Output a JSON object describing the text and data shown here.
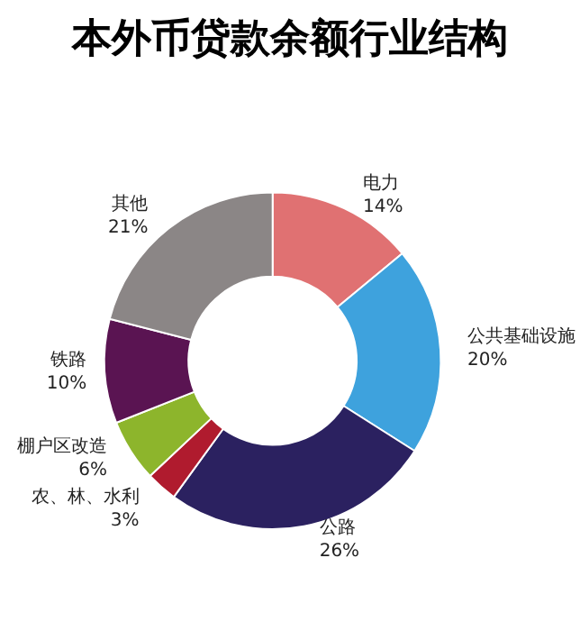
{
  "chart_data": {
    "type": "donut",
    "title": "本外币贷款余额行业结构",
    "categories": [
      "电力",
      "公共基础设施",
      "公路",
      "农、林、水利",
      "棚户区改造",
      "铁路",
      "其他"
    ],
    "values": [
      14,
      20,
      26,
      3,
      6,
      10,
      21
    ],
    "value_labels": [
      "14%",
      "20%",
      "26%",
      "3%",
      "6%",
      "10%",
      "21%"
    ],
    "colors": [
      "#e07172",
      "#3ea2dd",
      "#2b2160",
      "#b01b2e",
      "#8db52c",
      "#5a1452",
      "#8b8686"
    ],
    "legend": false
  }
}
